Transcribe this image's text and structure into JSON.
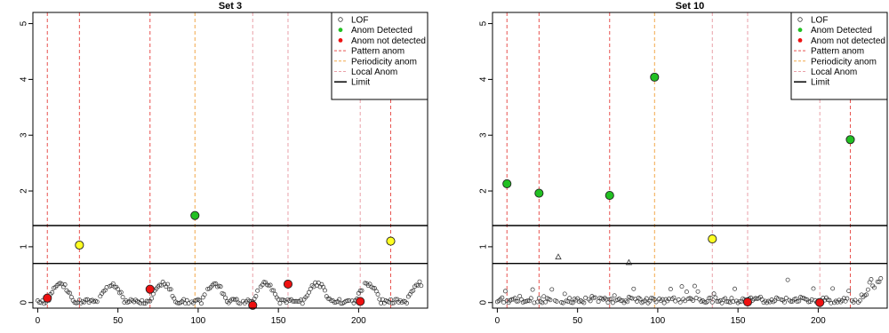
{
  "chart_data": [
    {
      "type": "scatter",
      "title": "Set 3",
      "xlabel": "",
      "ylabel": "",
      "xlim": [
        -3,
        243
      ],
      "ylim": [
        -0.1,
        5.2
      ],
      "xticks": [
        0,
        50,
        100,
        150,
        200
      ],
      "yticks": [
        0,
        1,
        2,
        3,
        4,
        5
      ],
      "legend_position": "top-right",
      "legend": [
        {
          "label": "LOF",
          "marker": "open-circle"
        },
        {
          "label": "Anom Detected",
          "marker": "green-dot"
        },
        {
          "label": "Anom not detected",
          "marker": "red-dot"
        },
        {
          "label": "Pattern anom",
          "marker": "red-dashed-line"
        },
        {
          "label": "Periodicity anom",
          "marker": "orange-dashed-line"
        },
        {
          "label": "Local Anom",
          "marker": "pink-dashed-line"
        },
        {
          "label": "Limit",
          "marker": "black-line"
        }
      ],
      "limits": [
        0.7,
        1.38
      ],
      "vlines": [
        {
          "x": 6,
          "kind": "pattern"
        },
        {
          "x": 26,
          "kind": "pattern"
        },
        {
          "x": 70,
          "kind": "pattern"
        },
        {
          "x": 98,
          "kind": "periodicity"
        },
        {
          "x": 134,
          "kind": "local"
        },
        {
          "x": 156,
          "kind": "local"
        },
        {
          "x": 201,
          "kind": "local"
        },
        {
          "x": 220,
          "kind": "pattern"
        }
      ],
      "base_profile": "periodic",
      "seed": 3,
      "base_points": [],
      "anomalies": [
        {
          "x": 6,
          "y": 0.08,
          "status": "not-detected"
        },
        {
          "x": 26,
          "y": 1.03,
          "status": "yellow"
        },
        {
          "x": 70,
          "y": 0.24,
          "status": "not-detected"
        },
        {
          "x": 98,
          "y": 1.56,
          "status": "detected"
        },
        {
          "x": 134,
          "y": -0.05,
          "status": "not-detected"
        },
        {
          "x": 156,
          "y": 0.33,
          "status": "not-detected"
        },
        {
          "x": 201,
          "y": 0.02,
          "status": "not-detected"
        },
        {
          "x": 220,
          "y": 1.1,
          "status": "yellow"
        }
      ],
      "triangles": []
    },
    {
      "type": "scatter",
      "title": "Set 10",
      "xlabel": "",
      "ylabel": "",
      "xlim": [
        -3,
        243
      ],
      "ylim": [
        -0.1,
        5.2
      ],
      "xticks": [
        0,
        50,
        100,
        150,
        200
      ],
      "yticks": [
        0,
        1,
        2,
        3,
        4,
        5
      ],
      "legend_position": "top-right",
      "legend": [
        {
          "label": "LOF",
          "marker": "open-circle"
        },
        {
          "label": "Anom Detected",
          "marker": "green-dot"
        },
        {
          "label": "Anom not detected",
          "marker": "red-dot"
        },
        {
          "label": "Pattern anom",
          "marker": "red-dashed-line"
        },
        {
          "label": "Periodicity anom",
          "marker": "orange-dashed-line"
        },
        {
          "label": "Local Anom",
          "marker": "pink-dashed-line"
        },
        {
          "label": "Limit",
          "marker": "black-line"
        }
      ],
      "limits": [
        0.7,
        1.38
      ],
      "vlines": [
        {
          "x": 6,
          "kind": "pattern"
        },
        {
          "x": 26,
          "kind": "pattern"
        },
        {
          "x": 70,
          "kind": "pattern"
        },
        {
          "x": 98,
          "kind": "periodicity"
        },
        {
          "x": 134,
          "kind": "local"
        },
        {
          "x": 156,
          "kind": "local"
        },
        {
          "x": 201,
          "kind": "local"
        },
        {
          "x": 220,
          "kind": "pattern"
        }
      ],
      "base_profile": "noise",
      "seed": 10,
      "base_points": [],
      "anomalies": [
        {
          "x": 6,
          "y": 2.13,
          "status": "detected"
        },
        {
          "x": 26,
          "y": 1.96,
          "status": "detected"
        },
        {
          "x": 70,
          "y": 1.92,
          "status": "detected"
        },
        {
          "x": 98,
          "y": 4.04,
          "status": "detected"
        },
        {
          "x": 134,
          "y": 1.14,
          "status": "yellow"
        },
        {
          "x": 156,
          "y": 0.01,
          "status": "not-detected"
        },
        {
          "x": 201,
          "y": 0.0,
          "status": "not-detected"
        },
        {
          "x": 220,
          "y": 2.92,
          "status": "detected"
        }
      ],
      "triangles": [
        {
          "x": 38,
          "y": 0.82
        },
        {
          "x": 82,
          "y": 0.72
        }
      ]
    }
  ],
  "colors": {
    "pattern": "#e8534f",
    "periodicity": "#f2a84b",
    "local": "#e9a0a8",
    "detected": "#22c022",
    "not_detected": "#ee1111",
    "yellow": "#ffff22",
    "limit": "#000000"
  }
}
